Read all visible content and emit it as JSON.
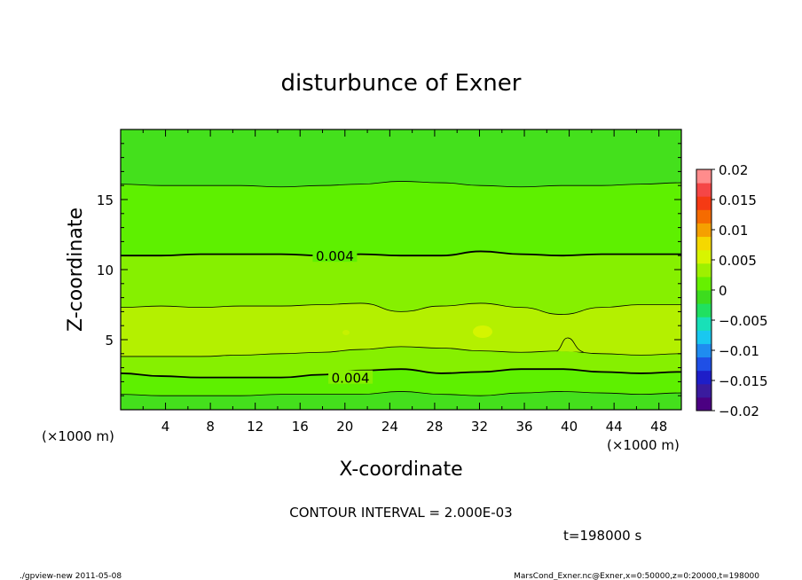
{
  "chart_data": {
    "type": "heatmap",
    "title": "disturbunce of Exner",
    "xlabel": "X-coordinate",
    "ylabel": "Z-coordinate",
    "x_unit": "(×1000 m)",
    "y_unit": "(×1000 m)",
    "xlim": [
      0,
      50
    ],
    "ylim": [
      0,
      20
    ],
    "x_ticks": [
      "4",
      "8",
      "12",
      "16",
      "20",
      "24",
      "28",
      "32",
      "36",
      "40",
      "44",
      "48"
    ],
    "y_ticks": [
      "5",
      "10",
      "15"
    ],
    "contour_interval_label": "CONTOUR INTERVAL = 2.000E-03",
    "time_label": "t=198000 s",
    "colorbar": {
      "range": [
        -0.02,
        0.02
      ],
      "tick_labels": [
        "0.02",
        "0.015",
        "0.01",
        "0.005",
        "0",
        "−0.005",
        "−0.01",
        "−0.015",
        "−0.02"
      ],
      "colors": [
        "#4b0082",
        "#3a1b9e",
        "#1e1ec8",
        "#1f4fe6",
        "#1f8cf0",
        "#19c8f0",
        "#18e0b8",
        "#20e060",
        "#3ddc1e",
        "#66f000",
        "#9ef000",
        "#d8f500",
        "#f5d800",
        "#f5a000",
        "#f56b00",
        "#f53a14",
        "#f54646",
        "#ff8c8c"
      ]
    },
    "contour_labels": [
      {
        "text": "0.004",
        "x": 19.1,
        "z": 11.0
      },
      {
        "text": "0.004",
        "x": 20.5,
        "z": 2.3
      }
    ],
    "bands": [
      {
        "z_low": 16.1,
        "z_high": 20.0,
        "color": "#44e01c"
      },
      {
        "z_low": 11.0,
        "z_high": 16.1,
        "color": "#5ef000"
      },
      {
        "z_low": 7.4,
        "z_high": 11.0,
        "color": "#86f000"
      },
      {
        "z_low": 4.2,
        "z_high": 7.4,
        "color": "#b4f000"
      },
      {
        "z_low": 3.8,
        "z_high": 4.2,
        "color": "#a6f000"
      },
      {
        "z_low": 2.6,
        "z_high": 3.8,
        "color": "#86f000"
      },
      {
        "z_low": 1.1,
        "z_high": 2.6,
        "color": "#5ef000"
      },
      {
        "z_low": 0.0,
        "z_high": 1.1,
        "color": "#44e01c"
      }
    ],
    "contours": [
      {
        "z": [
          16.1,
          16.0,
          16.0,
          16.0,
          15.9,
          16.0,
          16.1,
          16.3,
          16.2,
          16.0,
          15.9,
          16.0,
          16.0,
          16.1,
          16.2
        ],
        "bold": false
      },
      {
        "z": [
          11.0,
          11.0,
          11.1,
          11.1,
          11.1,
          11.0,
          11.1,
          11.0,
          11.0,
          11.3,
          11.1,
          11.0,
          11.1,
          11.1,
          11.1
        ],
        "bold": true
      },
      {
        "z": [
          7.3,
          7.4,
          7.3,
          7.4,
          7.4,
          7.5,
          7.6,
          7.0,
          7.4,
          7.6,
          7.3,
          6.8,
          7.3,
          7.5,
          7.5
        ],
        "bold": false
      },
      {
        "z": [
          3.8,
          3.8,
          3.8,
          3.9,
          4.0,
          4.1,
          4.3,
          4.5,
          4.4,
          4.2,
          4.1,
          4.2,
          4.0,
          3.9,
          4.0
        ],
        "bold": false
      },
      {
        "z": [
          2.6,
          2.4,
          2.3,
          2.3,
          2.3,
          2.5,
          2.8,
          2.9,
          2.6,
          2.7,
          2.9,
          2.9,
          2.7,
          2.6,
          2.7
        ],
        "bold": true
      },
      {
        "z": [
          1.1,
          1.0,
          1.0,
          1.0,
          1.1,
          1.1,
          1.1,
          1.3,
          1.1,
          1.0,
          1.2,
          1.3,
          1.2,
          1.1,
          1.2
        ],
        "bold": false
      }
    ],
    "contour_x": [
      0,
      3.6,
      7.1,
      10.7,
      14.3,
      17.9,
      21.4,
      25.0,
      28.6,
      32.1,
      35.7,
      39.3,
      42.9,
      46.4,
      50.0
    ]
  },
  "footer": {
    "left": "./gpview-new  2011-05-08",
    "right": "MarsCond_Exner.nc@Exner,x=0:50000,z=0:20000,t=198000"
  }
}
